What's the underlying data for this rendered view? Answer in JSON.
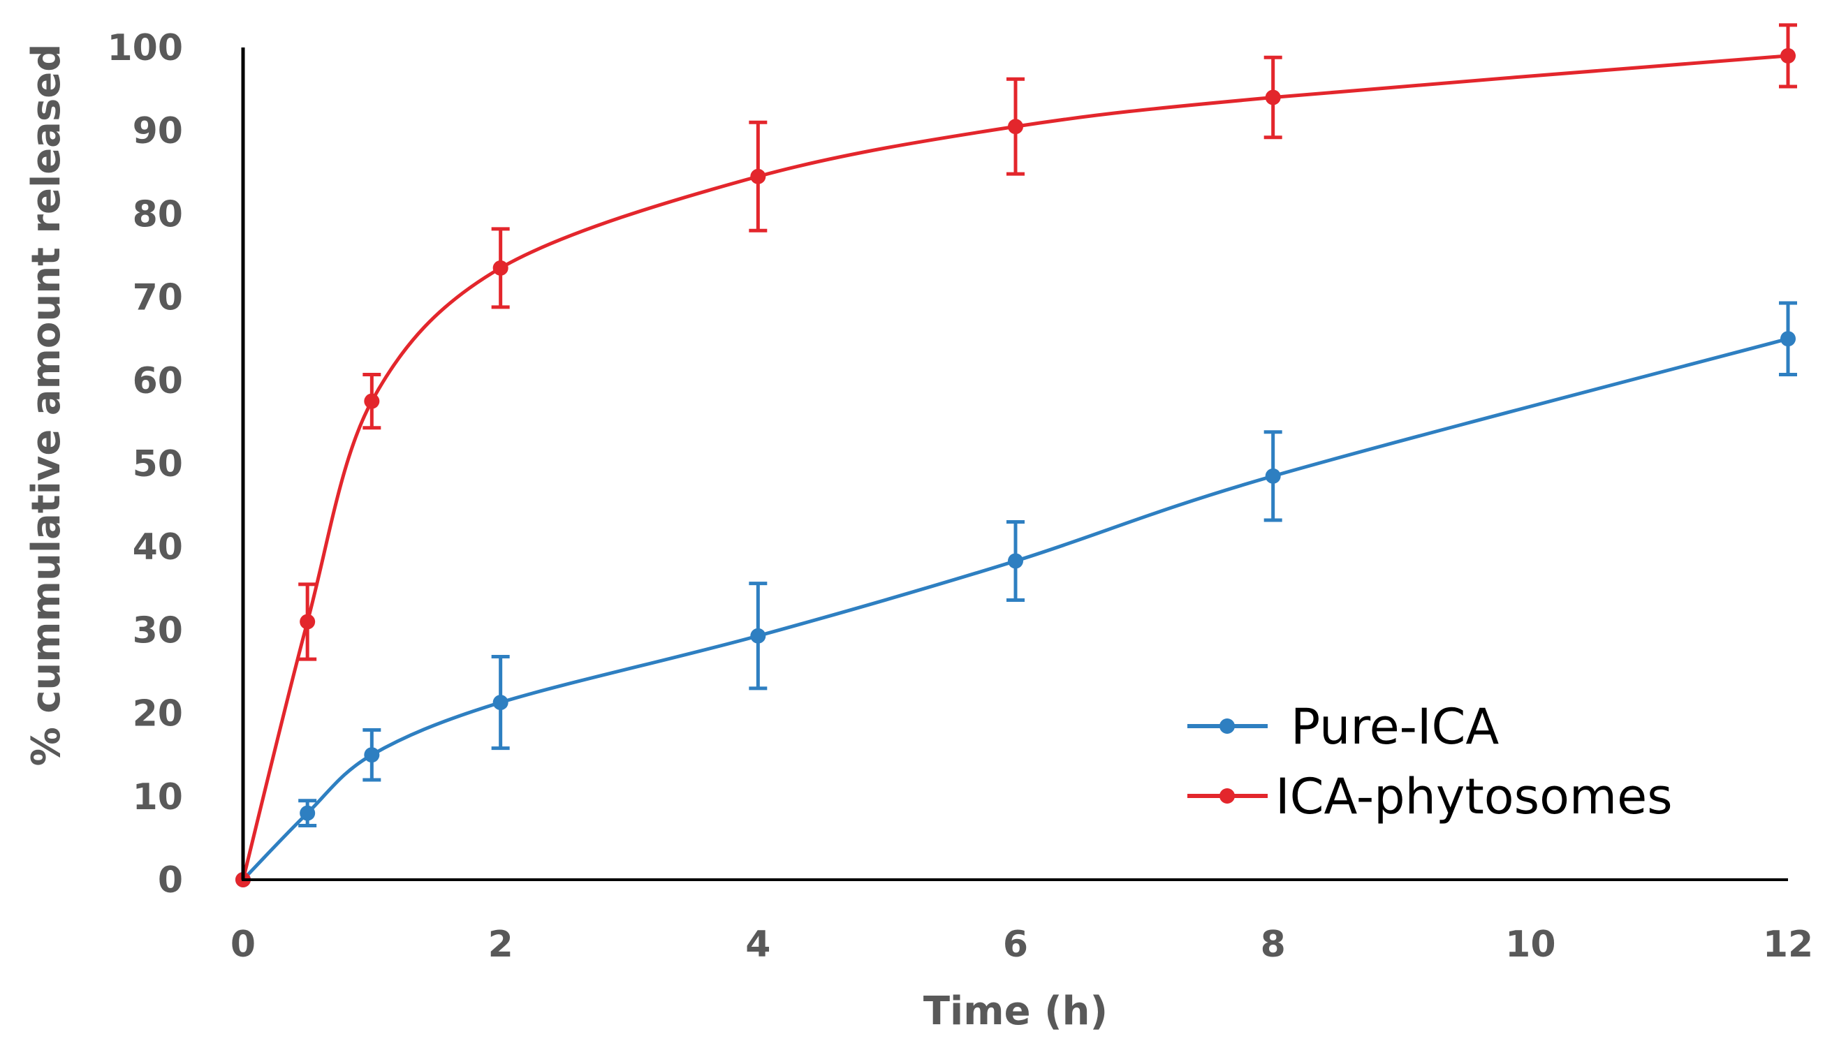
{
  "chart_data": {
    "type": "line",
    "title": "",
    "xlabel": "Time (h)",
    "ylabel": "% cummulative amount released",
    "xlim": [
      0,
      12
    ],
    "ylim": [
      0,
      100
    ],
    "x_ticks": [
      "0",
      "2",
      "4",
      "6",
      "8",
      "10",
      "12"
    ],
    "y_ticks": [
      "0",
      "10",
      "20",
      "30",
      "40",
      "50",
      "60",
      "70",
      "80",
      "90",
      "100"
    ],
    "grid": false,
    "legend_position": "bottom-right",
    "series": [
      {
        "name": "Pure-ICA",
        "color": "#2E7FC1",
        "points": [
          {
            "x": 0,
            "y": 0,
            "err": 0
          },
          {
            "x": 0.5,
            "y": 8,
            "err": 1.5
          },
          {
            "x": 1,
            "y": 15,
            "err": 3
          },
          {
            "x": 2,
            "y": 21.3,
            "err": 5.5
          },
          {
            "x": 4,
            "y": 29.3,
            "err": 6.3
          },
          {
            "x": 6,
            "y": 38.3,
            "err": 4.7
          },
          {
            "x": 8,
            "y": 48.5,
            "err": 5.3
          },
          {
            "x": 12,
            "y": 65,
            "err": 4.3
          }
        ]
      },
      {
        "name": "ICA-phytosomes",
        "color": "#E3262C",
        "points": [
          {
            "x": 0,
            "y": 0,
            "err": 0
          },
          {
            "x": 0.5,
            "y": 31,
            "err": 4.5
          },
          {
            "x": 1,
            "y": 57.5,
            "err": 3.2
          },
          {
            "x": 2,
            "y": 73.5,
            "err": 4.7
          },
          {
            "x": 4,
            "y": 84.5,
            "err": 6.5
          },
          {
            "x": 6,
            "y": 90.5,
            "err": 5.7
          },
          {
            "x": 8,
            "y": 94,
            "err": 4.8
          },
          {
            "x": 12,
            "y": 99,
            "err": 3.7
          }
        ]
      }
    ]
  }
}
